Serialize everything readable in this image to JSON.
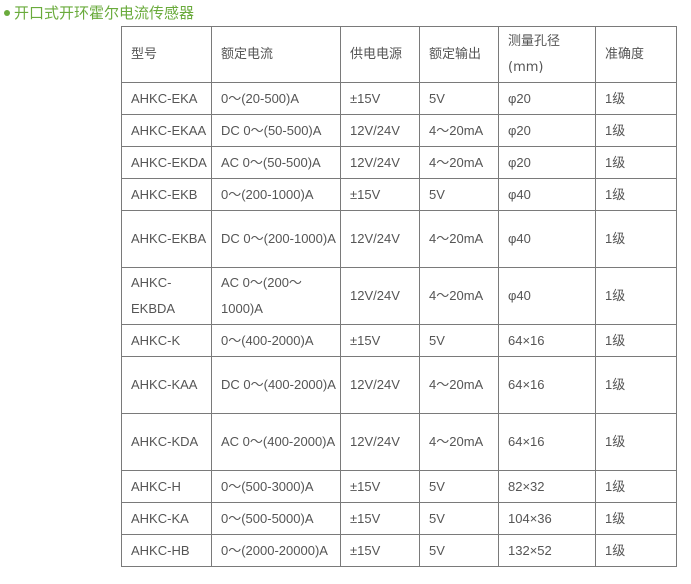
{
  "title": "开口式开环霍尔电流传感器",
  "headers": [
    "型号",
    "额定电流",
    "供电电源",
    "额定输出",
    "测量孔径(mm)",
    "准确度"
  ],
  "header_line1_col5": "测量孔径",
  "header_line2_col5": "(mm)",
  "rows": [
    [
      "AHKC-EKA",
      "0～(20-500)A",
      "±15V",
      "5V",
      "φ20",
      "1级"
    ],
    [
      "AHKC-EKAA",
      "DC 0～(50-500)A",
      "12V/24V",
      "4～20mA",
      "φ20",
      "1级"
    ],
    [
      "AHKC-EKDA",
      "AC 0～(50-500)A",
      "12V/24V",
      "4～20mA",
      "φ20",
      "1级"
    ],
    [
      "AHKC-EKB",
      "0～(200-1000)A",
      "±15V",
      "5V",
      "φ40",
      "1级"
    ],
    [
      "AHKC-EKBA",
      "DC 0～(200-1000)A",
      "12V/24V",
      "4～20mA",
      "φ40",
      "1级"
    ],
    [
      "AHKC-EKBDA",
      "AC 0～(200～1000)A",
      "12V/24V",
      "4～20mA",
      "φ40",
      "1级"
    ],
    [
      "AHKC-K",
      "0～(400-2000)A",
      "±15V",
      "5V",
      "64×16",
      "1级"
    ],
    [
      "AHKC-KAA",
      "DC 0～(400-2000)A",
      "12V/24V",
      "4～20mA",
      "64×16",
      "1级"
    ],
    [
      "AHKC-KDA",
      "AC 0～(400-2000)A",
      "12V/24V",
      "4～20mA",
      "64×16",
      "1级"
    ],
    [
      "AHKC-H",
      "0～(500-3000)A",
      "±15V",
      "5V",
      "82×32",
      "1级"
    ],
    [
      "AHKC-KA",
      "0～(500-5000)A",
      "±15V",
      "5V",
      "104×36",
      "1级"
    ],
    [
      "AHKC-HB",
      "0～(2000-20000)A",
      "±15V",
      "5V",
      "132×52",
      "1级"
    ]
  ]
}
